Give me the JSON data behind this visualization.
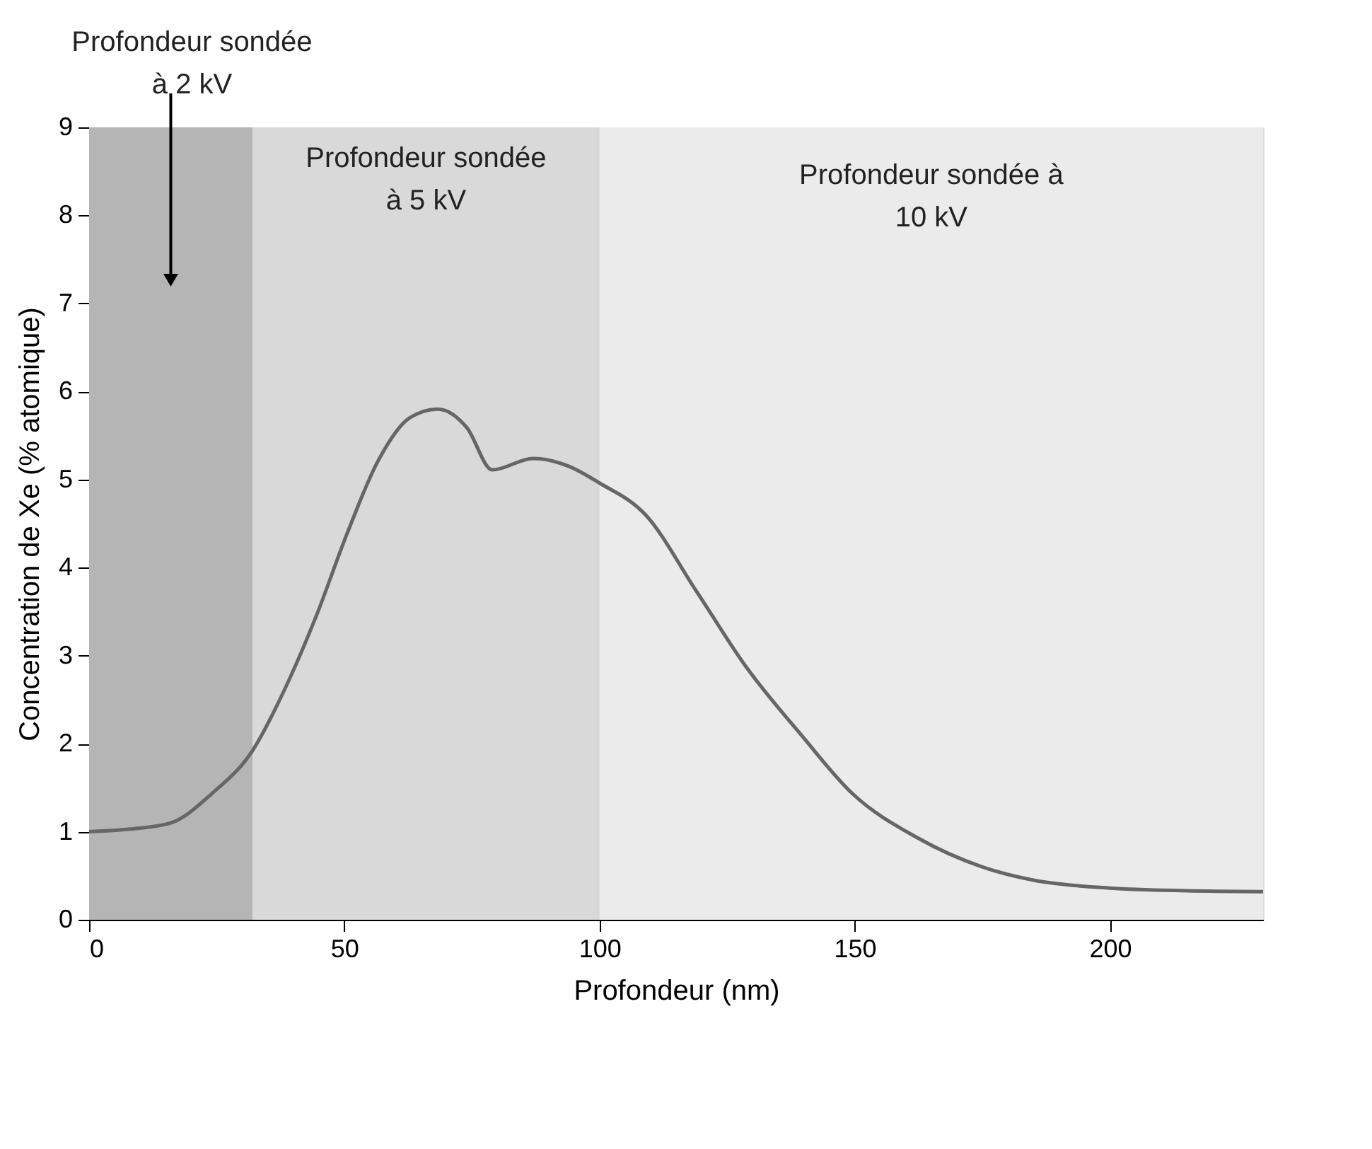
{
  "chart_data": {
    "type": "line",
    "xlabel": "Profondeur (nm)",
    "ylabel": "Concentration de Xe (% atomique)",
    "x": [
      0,
      8,
      16,
      24,
      32,
      38.5,
      44.5,
      50.5,
      56.6,
      62.8,
      68.3,
      74,
      79,
      87,
      94,
      100,
      109,
      119,
      129,
      139.5,
      149.6,
      162,
      175,
      185,
      200,
      215,
      230
    ],
    "series": [
      {
        "color": "#666666",
        "values": [
          1.0,
          1.03,
          1.1,
          1.43,
          1.92,
          2.64,
          3.45,
          4.38,
          5.21,
          5.7,
          5.8,
          5.59,
          5.11,
          5.24,
          5.15,
          4.96,
          4.6,
          3.73,
          2.85,
          2.1,
          1.43,
          0.94,
          0.6,
          0.45,
          0.36,
          0.33,
          0.32
        ]
      }
    ],
    "xlim": [
      0,
      230
    ],
    "xticks": [
      0,
      50,
      100,
      150,
      200
    ],
    "ylim": [
      0,
      9
    ],
    "yticks": [
      0,
      1,
      2,
      3,
      4,
      5,
      6,
      7,
      8,
      9
    ],
    "bands": [
      {
        "axis": "x",
        "from": 0,
        "to": 230,
        "label": "Profondeur sondée à\n10 kV",
        "color": "#ebebeb"
      },
      {
        "axis": "x",
        "from": 0,
        "to": 100,
        "label": "Profondeur sondée\nà 5 kV",
        "color": "#d9d9d9"
      },
      {
        "axis": "x",
        "from": 0,
        "to": 32,
        "label": "Profondeur sondée\nà 2 kV",
        "color": "#b5b5b5"
      }
    ],
    "grid": false,
    "marker": "none",
    "line_style": "solid"
  }
}
